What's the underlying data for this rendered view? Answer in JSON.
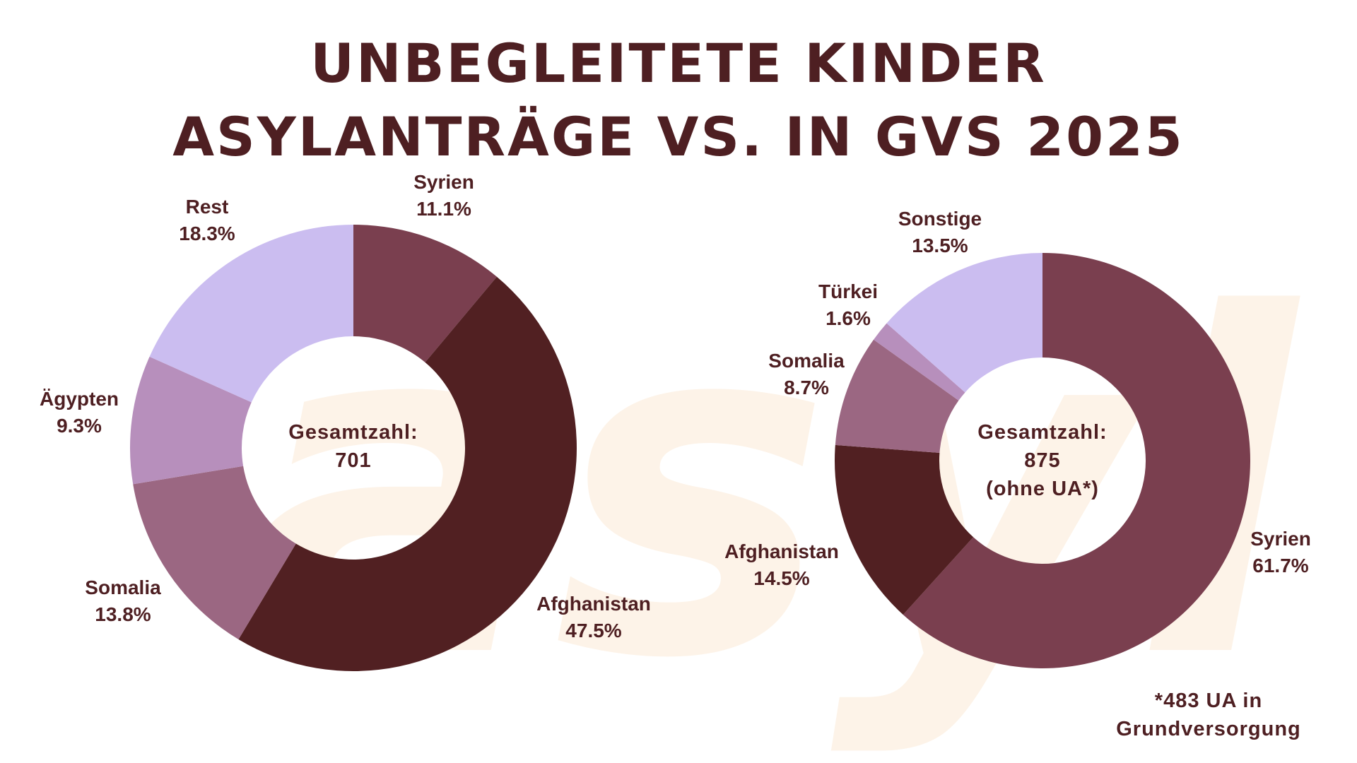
{
  "title": {
    "line1": "UNBEGLEITETE KINDER",
    "line2": "ASYLANTRÄGE VS. IN GVS 2025"
  },
  "watermark_text": "asyl",
  "colors": {
    "text": "#4e1f22",
    "watermark": "#fdf3e8"
  },
  "chart_data": [
    {
      "type": "pie",
      "donut": true,
      "center": {
        "line1": "Gesamtzahl:",
        "line2": "701"
      },
      "slices": [
        {
          "label": "Syrien",
          "value": 11.1,
          "value_label": "11.1%",
          "color": "#7a3f4f"
        },
        {
          "label": "Afghanistan",
          "value": 47.5,
          "value_label": "47.5%",
          "color": "#512022"
        },
        {
          "label": "Somalia",
          "value": 13.8,
          "value_label": "13.8%",
          "color": "#9b6782"
        },
        {
          "label": "Ägypten",
          "value": 9.3,
          "value_label": "9.3%",
          "color": "#b78fbc"
        },
        {
          "label": "Rest",
          "value": 18.3,
          "value_label": "18.3%",
          "color": "#cbbdf0"
        }
      ]
    },
    {
      "type": "pie",
      "donut": true,
      "center": {
        "line1": "Gesamtzahl:",
        "line2": "875",
        "line3": "(ohne UA*)"
      },
      "slices": [
        {
          "label": "Syrien",
          "value": 61.7,
          "value_label": "61.7%",
          "color": "#7a3f4f"
        },
        {
          "label": "Afghanistan",
          "value": 14.5,
          "value_label": "14.5%",
          "color": "#512022"
        },
        {
          "label": "Somalia",
          "value": 8.7,
          "value_label": "8.7%",
          "color": "#9b6782"
        },
        {
          "label": "Türkei",
          "value": 1.6,
          "value_label": "1.6%",
          "color": "#b78fbc"
        },
        {
          "label": "Sonstige",
          "value": 13.5,
          "value_label": "13.5%",
          "color": "#cbbdf0"
        }
      ]
    }
  ],
  "footnote": {
    "line1": "*483 UA in",
    "line2": "Grundversorgung"
  }
}
